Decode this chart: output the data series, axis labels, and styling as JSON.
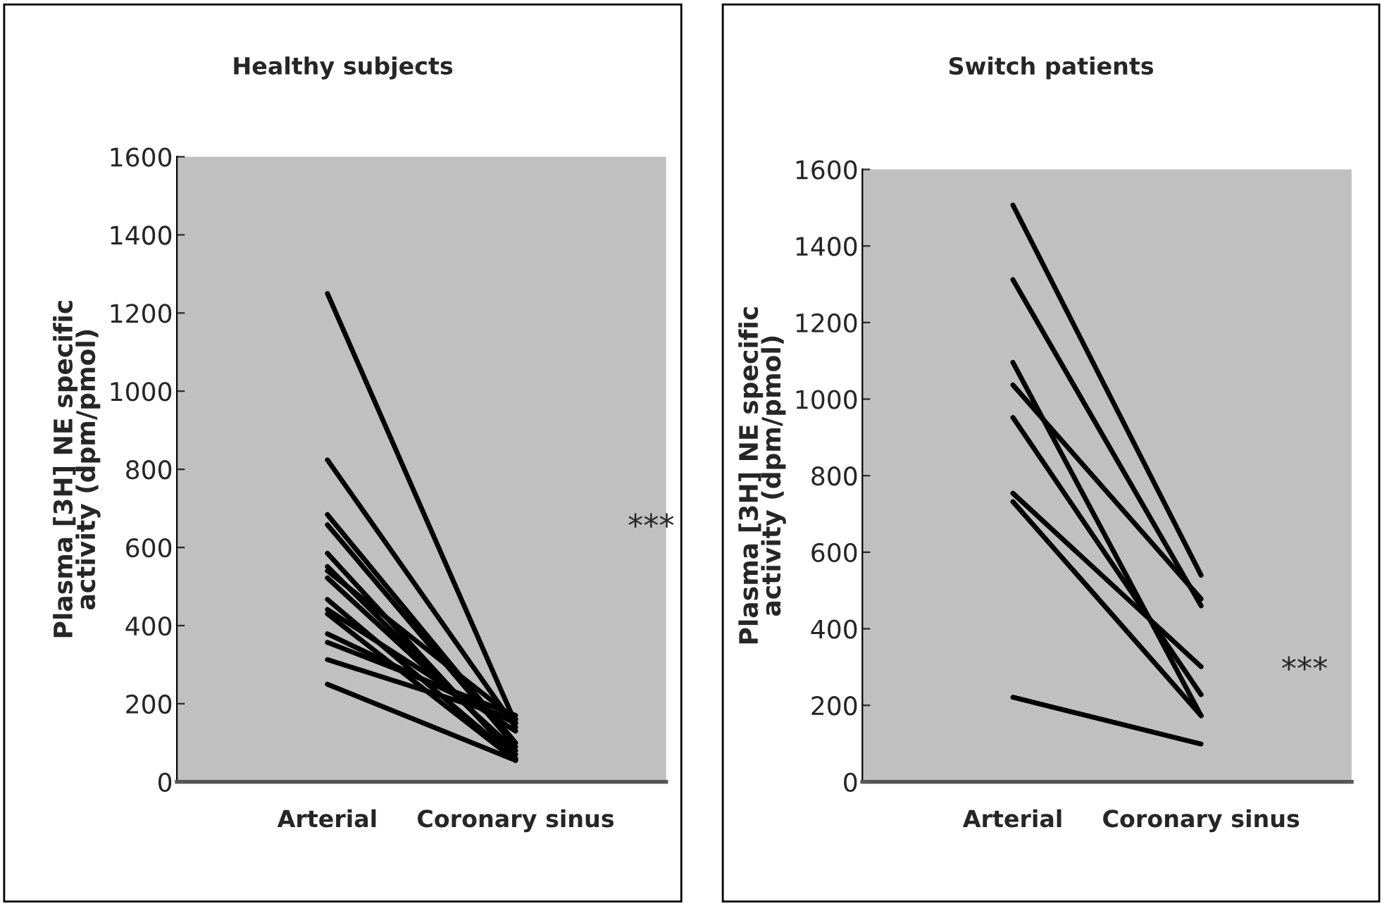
{
  "chart_data": [
    {
      "type": "line",
      "title": "Healthy subjects",
      "ylabel": "Plasma [3H] NE specific\nactivity (dpm/pmol)",
      "categories": [
        "Arterial",
        "Coronary sinus"
      ],
      "ylim": [
        0,
        1600
      ],
      "yticks": [
        0,
        200,
        400,
        600,
        800,
        1000,
        1200,
        1400,
        1600
      ],
      "grid": false,
      "legend": false,
      "marker": "none",
      "line_style": "solid",
      "annotations": [
        "***"
      ],
      "series": [
        {
          "color": "#000000",
          "values": [
            1250,
            150
          ]
        },
        {
          "color": "#000000",
          "values": [
            824,
            140
          ]
        },
        {
          "color": "#000000",
          "values": [
            684,
            100
          ]
        },
        {
          "color": "#000000",
          "values": [
            658,
            90
          ]
        },
        {
          "color": "#000000",
          "values": [
            585,
            60
          ]
        },
        {
          "color": "#000000",
          "values": [
            551,
            70
          ]
        },
        {
          "color": "#000000",
          "values": [
            540,
            160
          ]
        },
        {
          "color": "#000000",
          "values": [
            522,
            80
          ]
        },
        {
          "color": "#000000",
          "values": [
            467,
            60
          ]
        },
        {
          "color": "#000000",
          "values": [
            441,
            130
          ]
        },
        {
          "color": "#000000",
          "values": [
            430,
            55
          ]
        },
        {
          "color": "#000000",
          "values": [
            379,
            150
          ]
        },
        {
          "color": "#000000",
          "values": [
            357,
            170
          ]
        },
        {
          "color": "#000000",
          "values": [
            313,
            160
          ]
        },
        {
          "color": "#000000",
          "values": [
            250,
            55
          ]
        }
      ]
    },
    {
      "type": "line",
      "title": "Switch patients",
      "ylabel": "Plasma [3H] NE specific\nactivity (dpm/pmol)",
      "categories": [
        "Arterial",
        "Coronary sinus"
      ],
      "ylim": [
        0,
        1600
      ],
      "yticks": [
        0,
        200,
        400,
        600,
        800,
        1000,
        1200,
        1400,
        1600
      ],
      "grid": false,
      "legend": false,
      "marker": "none",
      "line_style": "solid",
      "annotations": [
        "***"
      ],
      "series": [
        {
          "color": "#000000",
          "values": [
            1507,
            540
          ]
        },
        {
          "color": "#000000",
          "values": [
            1312,
            460
          ]
        },
        {
          "color": "#000000",
          "values": [
            1096,
            173
          ]
        },
        {
          "color": "#000000",
          "values": [
            1037,
            478
          ]
        },
        {
          "color": "#000000",
          "values": [
            952,
            228
          ]
        },
        {
          "color": "#000000",
          "values": [
            754,
            301
          ]
        },
        {
          "color": "#000000",
          "values": [
            732,
            173
          ]
        },
        {
          "color": "#000000",
          "values": [
            221,
            99
          ]
        }
      ]
    }
  ]
}
